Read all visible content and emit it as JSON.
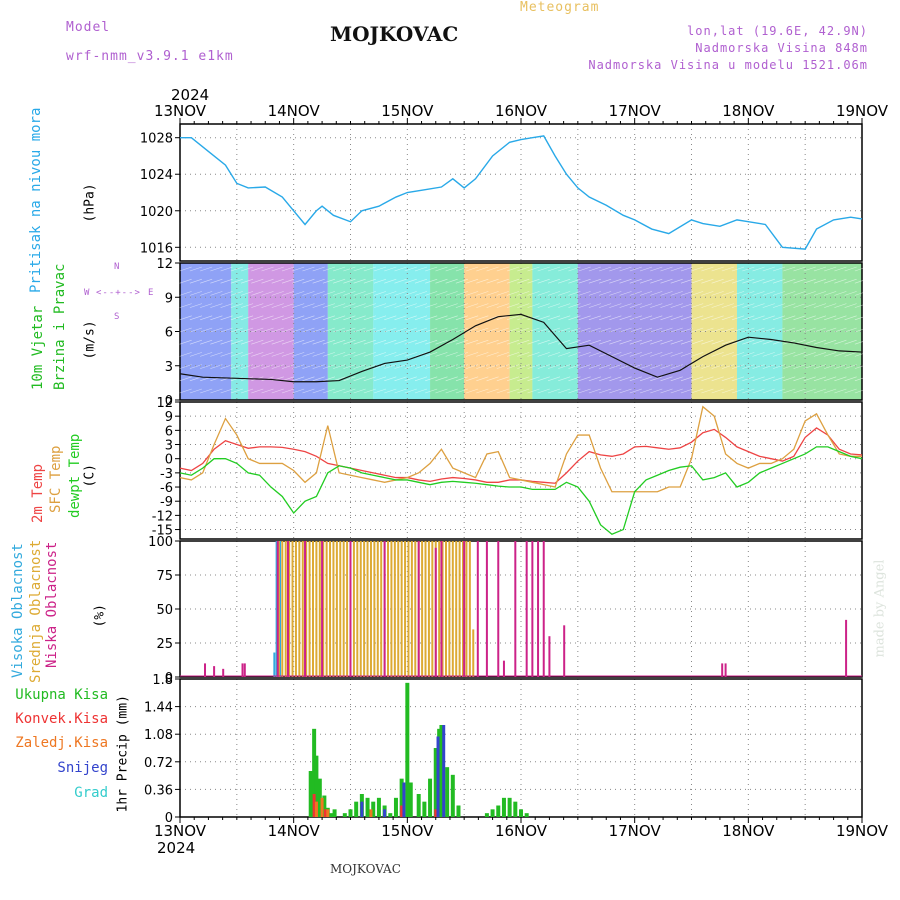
{
  "header": {
    "model_label": "Model",
    "model_name": "wrf-nmm_v3.9.1 e1km",
    "station": "MOJKOVAC",
    "product": "Meteogram",
    "lonlat": "lon,lat (19.6E, 42.9N)",
    "elevation": "Nadmorska Visina 848m",
    "model_elevation": "Nadmorska Visina u modelu 1521.06m",
    "year_top": "2024",
    "year_bottom": "2024",
    "footer_station": "MOJKOVAC",
    "watermark": "made by Angel"
  },
  "colors": {
    "pressure": "#29a9e8",
    "temp2m": "#ee4444",
    "sfc": "#dda040",
    "dewpt": "#22cc22",
    "high_cloud": "#33aadd",
    "mid_cloud": "#ddaa33",
    "low_cloud": "#cc2288",
    "total_precip": "#22bb22",
    "conv_precip": "#ee3333",
    "frozen_precip": "#ee7722",
    "snow": "#3344cc",
    "hail": "#33cccc"
  },
  "labels": {
    "pressure": [
      "Pritisak na nivou mora",
      "(hPa)"
    ],
    "wind": [
      "10m Vjetar",
      "Brzina i Pravac",
      "(m/s)"
    ],
    "compass": {
      "n": "N",
      "s": "S",
      "w": "W",
      "e": "E"
    },
    "temp": [
      "2m Temp",
      "SFC Temp",
      "dewpt Temp",
      "(C)"
    ],
    "cloud": [
      "Visoka Oblacnost",
      "Srednja Oblacnost",
      "Niska Oblacnost",
      "(%)"
    ],
    "precip_legend": [
      "Ukupna Kisa",
      "Konvek.Kisa",
      "Zaledj.Kisa",
      "Snijeg",
      "Grad"
    ],
    "precip_axis": "1hr Precip (mm)"
  },
  "chart_data": [
    {
      "type": "line",
      "name": "pressure",
      "ylabel": "(hPa)",
      "ylim": [
        1014.5,
        1029.5
      ],
      "yticks": [
        1016,
        1020,
        1024,
        1028
      ],
      "x_days": [
        0,
        0.1,
        0.25,
        0.4,
        0.5,
        0.6,
        0.75,
        0.9,
        1.0,
        1.1,
        1.2,
        1.25,
        1.35,
        1.5,
        1.6,
        1.75,
        1.9,
        2.0,
        2.15,
        2.3,
        2.4,
        2.5,
        2.6,
        2.75,
        2.9,
        3.0,
        3.1,
        3.2,
        3.3,
        3.4,
        3.5,
        3.6,
        3.75,
        3.9,
        4.0,
        4.15,
        4.3,
        4.5,
        4.6,
        4.75,
        4.9,
        5.0,
        5.15,
        5.3,
        5.5,
        5.6,
        5.75,
        5.9,
        6.0
      ],
      "values": [
        1028,
        1028,
        1026.5,
        1025,
        1023,
        1022.5,
        1022.6,
        1021.5,
        1020,
        1018.5,
        1020,
        1020.5,
        1019.5,
        1018.8,
        1020,
        1020.5,
        1021.5,
        1022,
        1022.3,
        1022.6,
        1023.5,
        1022.5,
        1023.5,
        1026,
        1027.5,
        1027.8,
        1028,
        1028.2,
        1026,
        1024,
        1022.5,
        1021.5,
        1020.6,
        1019.5,
        1019,
        1018,
        1017.5,
        1019,
        1018.6,
        1018.3,
        1019,
        1018.8,
        1018.5,
        1016,
        1015.8,
        1018,
        1019,
        1019.3,
        1019.1
      ]
    },
    {
      "type": "line",
      "name": "wind",
      "ylabel": "(m/s)",
      "ylim": [
        0,
        12
      ],
      "yticks": [
        0,
        3,
        6,
        9,
        12
      ],
      "x_days": [
        0,
        0.2,
        0.5,
        0.8,
        1.0,
        1.2,
        1.4,
        1.6,
        1.8,
        2.0,
        2.2,
        2.4,
        2.6,
        2.8,
        3.0,
        3.2,
        3.4,
        3.6,
        3.8,
        4.0,
        4.2,
        4.4,
        4.6,
        4.8,
        5.0,
        5.2,
        5.4,
        5.6,
        5.8,
        6.0
      ],
      "values": [
        2.3,
        2.0,
        1.9,
        1.8,
        1.6,
        1.6,
        1.7,
        2.5,
        3.2,
        3.5,
        4.2,
        5.3,
        6.5,
        7.3,
        7.5,
        6.8,
        4.5,
        4.8,
        3.8,
        2.8,
        2.0,
        2.6,
        3.8,
        4.8,
        5.5,
        5.3,
        5.0,
        4.6,
        4.3,
        4.2
      ]
    },
    {
      "type": "line",
      "name": "temperature",
      "ylabel": "(C)",
      "ylim": [
        -17,
        12
      ],
      "yticks": [
        -15,
        -12,
        -9,
        -6,
        -3,
        0,
        3,
        6,
        9,
        12
      ],
      "x_days": [
        0,
        0.1,
        0.2,
        0.3,
        0.4,
        0.5,
        0.6,
        0.7,
        0.8,
        0.9,
        1.0,
        1.1,
        1.2,
        1.3,
        1.4,
        1.5,
        1.6,
        1.7,
        1.8,
        1.9,
        2.0,
        2.1,
        2.2,
        2.3,
        2.4,
        2.5,
        2.6,
        2.7,
        2.8,
        2.9,
        3.0,
        3.1,
        3.2,
        3.3,
        3.4,
        3.5,
        3.6,
        3.7,
        3.8,
        3.9,
        4.0,
        4.1,
        4.2,
        4.3,
        4.4,
        4.5,
        4.6,
        4.7,
        4.8,
        4.9,
        5.0,
        5.1,
        5.2,
        5.3,
        5.4,
        5.5,
        5.6,
        5.7,
        5.8,
        5.9,
        6.0
      ],
      "series": [
        {
          "name": "2m Temp",
          "color_key": "temp2m",
          "values": [
            -2,
            -2.5,
            -1,
            2,
            3.8,
            3,
            2.2,
            2.5,
            2.5,
            2.4,
            2,
            1.5,
            0.5,
            -1,
            -1.5,
            -2,
            -2.5,
            -3,
            -3.5,
            -4,
            -4,
            -4.5,
            -4.8,
            -4.3,
            -4,
            -4.2,
            -4.5,
            -5,
            -5,
            -4.5,
            -4.5,
            -4.8,
            -5,
            -5.2,
            -3,
            -0.5,
            1.5,
            0.8,
            0.5,
            1,
            2.5,
            2.6,
            2.3,
            2,
            2.3,
            3.5,
            5.5,
            6.2,
            4.5,
            2.5,
            1.5,
            0.5,
            0,
            -0.5,
            0.5,
            4.5,
            6.5,
            5,
            2,
            1,
            0.8
          ]
        },
        {
          "name": "SFC Temp",
          "color_key": "sfc",
          "values": [
            -4,
            -4.5,
            -3,
            3,
            8.5,
            5,
            0,
            -1,
            -1,
            -1,
            -2.5,
            -5,
            -3,
            7,
            -3,
            -3.5,
            -4,
            -4.5,
            -5,
            -4.5,
            -4,
            -3,
            -1,
            2,
            -2,
            -3,
            -4,
            1,
            1.5,
            -4,
            -4.5,
            -5,
            -5.5,
            -6,
            1,
            5,
            5,
            -2,
            -7,
            -7,
            -7,
            -7,
            -7,
            -6,
            -6,
            0,
            11,
            9,
            1,
            -1,
            -2,
            -1,
            -1,
            0,
            2,
            8,
            9.5,
            5,
            1,
            0.5,
            0.5
          ]
        },
        {
          "name": "dewpt Temp",
          "color_key": "dewpt",
          "values": [
            -3,
            -3.5,
            -2,
            0,
            0,
            -1,
            -3,
            -3.5,
            -6,
            -8,
            -11.5,
            -9,
            -8,
            -3,
            -1.5,
            -2,
            -3,
            -3.5,
            -4,
            -4.5,
            -4.5,
            -5,
            -5.5,
            -5,
            -4.8,
            -5,
            -5.2,
            -5.5,
            -5.8,
            -6,
            -6,
            -6.5,
            -6.5,
            -6.5,
            -5,
            -6,
            -9,
            -14,
            -16,
            -15,
            -7,
            -4.5,
            -3.5,
            -2.5,
            -1.8,
            -1.5,
            -4.5,
            -4,
            -3,
            -6,
            -5,
            -3,
            -2,
            -1,
            0,
            1,
            2.5,
            2.5,
            1.5,
            0.5,
            0
          ]
        }
      ]
    },
    {
      "type": "bar",
      "name": "cloud",
      "ylabel": "(%)",
      "ylim": [
        0,
        100
      ],
      "yticks": [
        0,
        25,
        50,
        75,
        100
      ],
      "series": [
        {
          "name": "Visoka Oblacnost",
          "color_key": "high_cloud",
          "x_days": [
            0.83,
            0.85,
            0.88
          ],
          "values": [
            18,
            100,
            100
          ]
        },
        {
          "name": "Srednja Oblacnost",
          "color_key": "mid_cloud",
          "x_days": [
            0.87,
            0.9,
            0.93,
            0.96,
            0.99,
            1.02,
            1.05,
            1.08,
            1.11,
            1.14,
            1.17,
            1.2,
            1.23,
            1.26,
            1.29,
            1.32,
            1.35,
            1.38,
            1.41,
            1.44,
            1.47,
            1.5,
            1.53,
            1.56,
            1.59,
            1.62,
            1.65,
            1.68,
            1.71,
            1.74,
            1.77,
            1.8,
            1.83,
            1.86,
            1.89,
            1.92,
            1.95,
            1.98,
            2.01,
            2.04,
            2.07,
            2.1,
            2.13,
            2.16,
            2.19,
            2.22,
            2.25,
            2.28,
            2.31,
            2.34,
            2.37,
            2.4,
            2.43,
            2.46,
            2.49,
            2.52,
            2.55,
            2.58
          ],
          "values": [
            100,
            100,
            100,
            100,
            100,
            100,
            100,
            100,
            100,
            100,
            100,
            100,
            100,
            100,
            100,
            100,
            100,
            100,
            100,
            100,
            100,
            100,
            100,
            100,
            100,
            100,
            100,
            100,
            100,
            100,
            100,
            100,
            100,
            100,
            100,
            100,
            100,
            100,
            100,
            100,
            100,
            100,
            100,
            100,
            100,
            100,
            100,
            100,
            100,
            100,
            100,
            100,
            100,
            100,
            100,
            100,
            100,
            35
          ]
        },
        {
          "name": "Niska Oblacnost",
          "color_key": "low_cloud",
          "x_days": [
            0.22,
            0.3,
            0.38,
            0.55,
            0.57,
            0.86,
            0.95,
            1.1,
            1.25,
            1.5,
            1.8,
            2.1,
            2.25,
            2.3,
            2.5,
            2.62,
            2.7,
            2.8,
            2.85,
            2.95,
            3.05,
            3.1,
            3.15,
            3.2,
            3.25,
            3.38,
            4.77,
            4.8,
            5.86
          ],
          "values": [
            10,
            8,
            6,
            10,
            10,
            100,
            100,
            100,
            100,
            100,
            100,
            100,
            95,
            100,
            100,
            100,
            100,
            100,
            12,
            100,
            100,
            100,
            100,
            100,
            30,
            38,
            10,
            10,
            42
          ]
        }
      ]
    },
    {
      "type": "bar",
      "name": "precip",
      "ylabel": "1hr Precip (mm)",
      "ylim": [
        0,
        1.8
      ],
      "yticks": [
        0,
        0.36,
        0.72,
        1.08,
        1.44,
        1.8
      ],
      "series": [
        {
          "name": "Ukupna Kisa",
          "color_key": "total_precip",
          "x_days": [
            1.15,
            1.18,
            1.2,
            1.23,
            1.27,
            1.3,
            1.33,
            1.36,
            1.45,
            1.5,
            1.55,
            1.6,
            1.65,
            1.7,
            1.75,
            1.8,
            1.85,
            1.9,
            1.95,
            2.0,
            2.03,
            2.1,
            2.15,
            2.2,
            2.25,
            2.28,
            2.3,
            2.35,
            2.4,
            2.45,
            2.7,
            2.75,
            2.8,
            2.85,
            2.9,
            2.95,
            3.0,
            3.05
          ],
          "values": [
            0.6,
            1.15,
            0.8,
            0.5,
            0.28,
            0.12,
            0.05,
            0.1,
            0.05,
            0.1,
            0.2,
            0.3,
            0.25,
            0.2,
            0.25,
            0.15,
            0.05,
            0.25,
            0.5,
            1.75,
            0.45,
            0.3,
            0.2,
            0.5,
            0.9,
            1.15,
            1.2,
            0.65,
            0.55,
            0.15,
            0.05,
            0.1,
            0.15,
            0.25,
            0.25,
            0.2,
            0.1,
            0.05
          ]
        },
        {
          "name": "Konvek.Kisa",
          "color_key": "conv_precip",
          "x_days": [
            1.18,
            1.2,
            1.28,
            1.95,
            2.25
          ],
          "values": [
            0.3,
            0.2,
            0.1,
            0.15,
            0.1
          ]
        },
        {
          "name": "Zaledj.Kisa",
          "color_key": "frozen_precip",
          "x_days": [
            1.2,
            1.25,
            1.3,
            1.68
          ],
          "values": [
            0.2,
            0.25,
            0.1,
            0.1
          ]
        },
        {
          "name": "Snijeg",
          "color_key": "snow",
          "x_days": [
            1.6,
            1.8,
            1.97,
            2.27,
            2.32
          ],
          "values": [
            0.2,
            0.1,
            0.45,
            1.05,
            1.2
          ]
        },
        {
          "name": "Grad",
          "color_key": "hail",
          "x_days": [],
          "values": []
        }
      ]
    }
  ],
  "x_axis": {
    "days": [
      0,
      1,
      2,
      3,
      4,
      5,
      6
    ],
    "labels": [
      "13NOV",
      "14NOV",
      "15NOV",
      "16NOV",
      "17NOV",
      "18NOV",
      "19NOV"
    ]
  }
}
